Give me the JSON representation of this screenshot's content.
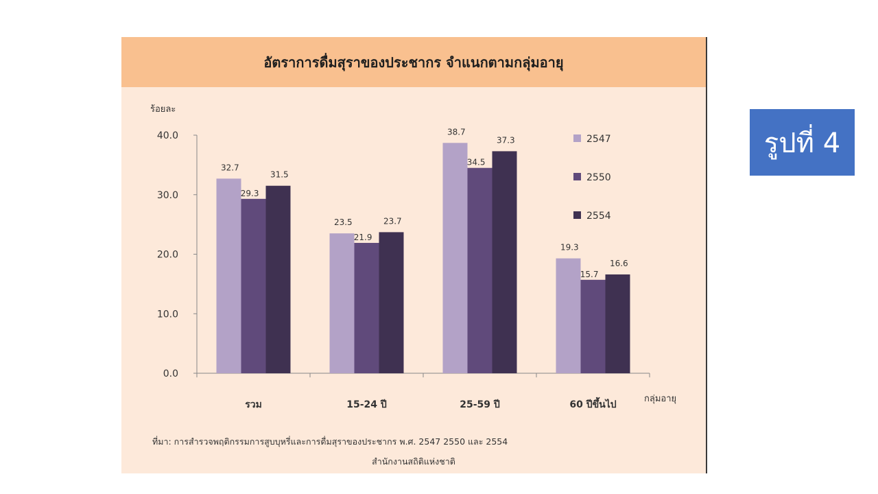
{
  "figure_label": "รูปที่ 4",
  "source_line1": "ที่มา: การสำรวจพฤติกรรมการสูบบุหรี่และการดื่มสุราของประชากร พ.ศ. 2547 2550 และ 2554",
  "source_line2": "สำนักงานสถิติแห่งชาติ",
  "colors": {
    "2547": "#b3a2c7",
    "2550": "#604a7b",
    "2554": "#3f3151",
    "background": "#fde9da",
    "title_band": "#f9c08f"
  },
  "chart_data": {
    "type": "bar",
    "title": "อัตราการดื่มสุราของประชากร จำแนกตามกลุ่มอายุ",
    "ylabel": "ร้อยละ",
    "xlabel": "กลุ่มอายุ",
    "categories": [
      "รวม",
      "15-24 ปี",
      "25-59 ปี",
      "60 ปีขึ้นไป"
    ],
    "series": [
      {
        "name": "2547",
        "values": [
          32.7,
          23.5,
          38.7,
          19.3
        ]
      },
      {
        "name": "2550",
        "values": [
          29.3,
          21.9,
          34.5,
          15.7
        ]
      },
      {
        "name": "2554",
        "values": [
          31.5,
          23.7,
          37.3,
          16.6
        ]
      }
    ],
    "value_labels": [
      [
        "32.7",
        "23.5",
        "38.7",
        "19.3"
      ],
      [
        "29.3",
        "21.9",
        "34.5",
        "15.7"
      ],
      [
        "31.5",
        "23.7",
        "37.3",
        "16.6"
      ]
    ],
    "yticks": [
      "0.0",
      "10.0",
      "20.0",
      "30.0",
      "40.0"
    ],
    "ylim": [
      0,
      40
    ],
    "grid": false,
    "legend_position": "right"
  }
}
